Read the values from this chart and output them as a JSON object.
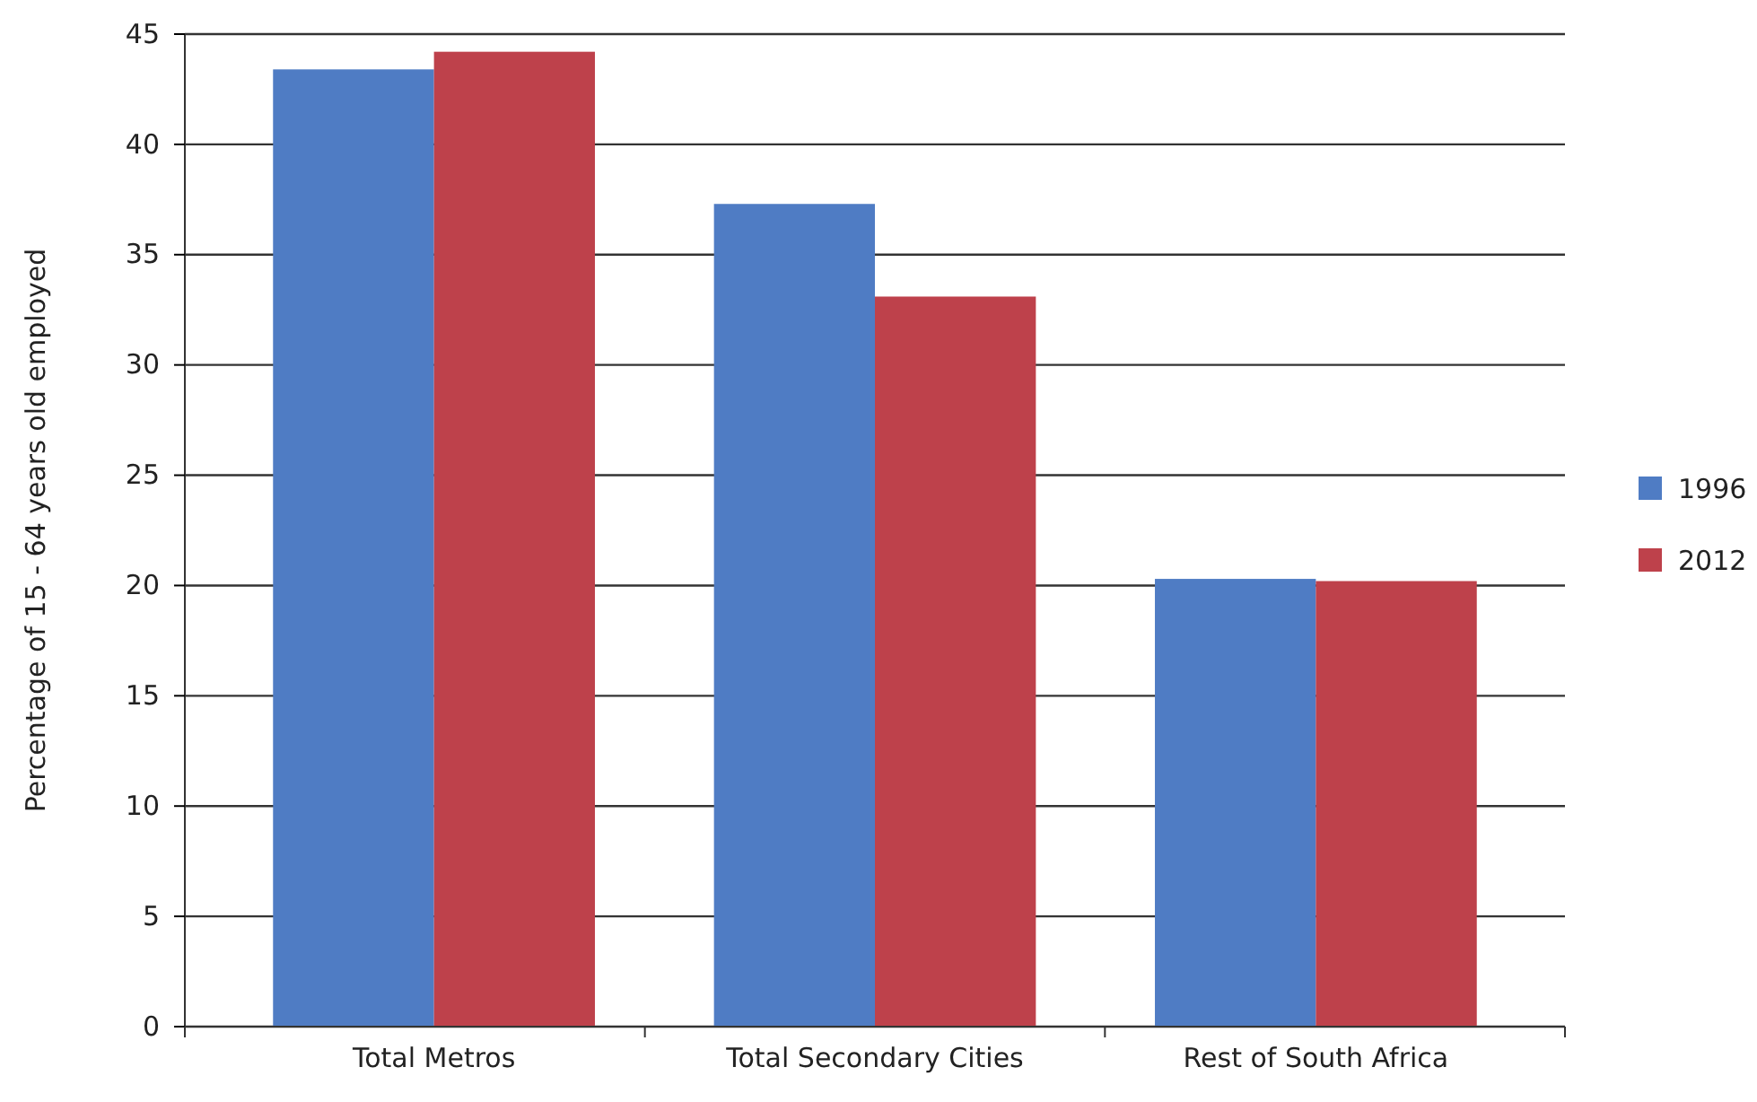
{
  "chart_data": {
    "type": "bar",
    "ylabel": "Percentage of 15 - 64 years old employed",
    "categories": [
      "Total Metros",
      "Total Secondary Cities",
      "Rest of South Africa"
    ],
    "series": [
      {
        "name": "1996",
        "color": "#4f7cc4",
        "values": [
          43.4,
          37.3,
          20.3
        ]
      },
      {
        "name": "2012",
        "color": "#be414b",
        "values": [
          44.2,
          33.1,
          20.2
        ]
      }
    ],
    "ylim": [
      0,
      45
    ],
    "yticks": [
      0,
      5,
      10,
      15,
      20,
      25,
      30,
      35,
      40,
      45
    ],
    "grid": "y",
    "legend": "right"
  }
}
